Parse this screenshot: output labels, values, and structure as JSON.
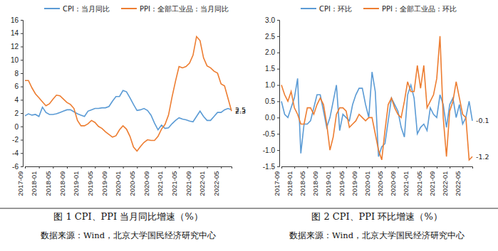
{
  "chart_data": [
    {
      "type": "line",
      "title": "图 1 CPI、PPI 当月同比增速（%）",
      "source": "数据来源：Wind，北京大学国民经济研究中心",
      "categories": [
        "2017-09",
        null,
        null,
        null,
        "2018-01",
        null,
        null,
        null,
        "2018-05",
        null,
        null,
        null,
        "2018-09",
        null,
        null,
        null,
        "2019-01",
        null,
        null,
        null,
        "2019-05",
        null,
        null,
        null,
        "2019-09",
        null,
        null,
        null,
        "2020-01",
        null,
        null,
        null,
        "2020-05",
        null,
        null,
        null,
        "2020-09",
        null,
        null,
        null,
        "2021-01",
        null,
        null,
        null,
        "2021-05",
        null,
        null,
        null,
        "2021-09",
        null,
        null,
        null,
        "2022-01",
        null,
        null,
        null,
        "2022-05",
        null,
        null,
        null
      ],
      "ylim": [
        -6,
        16
      ],
      "yticks": [
        -6,
        -4,
        -2,
        0,
        2,
        4,
        6,
        8,
        10,
        12,
        14,
        16
      ],
      "grid": false,
      "legend": "top",
      "annotations": [
        "2.5",
        "2.3"
      ],
      "series": [
        {
          "name": "CPI：当月同比",
          "color": "#5b9bd5",
          "values": [
            1.6,
            1.9,
            1.7,
            1.8,
            1.5,
            2.9,
            2.1,
            1.8,
            1.8,
            1.9,
            2.1,
            2.3,
            2.5,
            2.5,
            2.2,
            1.9,
            1.7,
            1.5,
            2.3,
            2.5,
            2.7,
            2.7,
            2.8,
            2.8,
            3.0,
            3.8,
            4.5,
            4.5,
            5.4,
            5.2,
            4.3,
            3.3,
            2.4,
            2.5,
            2.7,
            2.4,
            1.7,
            0.5,
            -0.5,
            0.2,
            -0.3,
            -0.2,
            0.4,
            0.9,
            1.3,
            1.1,
            1.0,
            0.8,
            0.7,
            1.5,
            2.3,
            1.5,
            0.9,
            0.9,
            1.5,
            2.1,
            2.1,
            2.5,
            2.7,
            2.5
          ]
        },
        {
          "name": "PPI：全部工业品：当月同比",
          "color": "#ed7d31",
          "values": [
            6.9,
            6.9,
            5.8,
            4.9,
            4.3,
            3.7,
            3.1,
            3.4,
            4.1,
            4.7,
            4.6,
            4.1,
            3.6,
            3.3,
            2.7,
            0.9,
            0.1,
            0.1,
            0.4,
            0.9,
            0.6,
            0.0,
            -0.3,
            -0.8,
            -1.2,
            -1.6,
            -1.4,
            -0.5,
            0.1,
            -0.4,
            -1.5,
            -3.1,
            -3.7,
            -3.0,
            -2.4,
            -2.0,
            -2.1,
            -2.1,
            -1.5,
            -0.4,
            0.3,
            1.7,
            4.4,
            6.8,
            9.0,
            8.8,
            9.0,
            9.5,
            10.7,
            13.5,
            12.9,
            10.3,
            9.1,
            8.8,
            8.3,
            8.0,
            6.4,
            6.1,
            4.2,
            2.3
          ]
        }
      ]
    },
    {
      "type": "line",
      "title": "图 2 CPI、PPI 环比增速（%）",
      "source": "数据来源：Wind，北京大学国民经济研究中心",
      "categories": [
        "2017-09",
        null,
        null,
        null,
        "2018-01",
        null,
        null,
        null,
        "2018-05",
        null,
        null,
        null,
        "2018-09",
        null,
        null,
        null,
        "2019-01",
        null,
        null,
        null,
        "2019-05",
        null,
        null,
        null,
        "2019-09",
        null,
        null,
        null,
        "2020-01",
        null,
        null,
        null,
        "2020-05",
        null,
        null,
        null,
        "2020-09",
        null,
        null,
        null,
        "2021-01",
        null,
        null,
        null,
        "2021-05",
        null,
        null,
        null,
        "2021-09",
        null,
        null,
        null,
        "2022-01",
        null,
        null,
        null,
        "2022-05",
        null,
        null,
        null
      ],
      "ylim": [
        -1.5,
        3.0
      ],
      "yticks": [
        {
          "value": -1.5,
          "label": "-1.5"
        },
        {
          "value": -1.0,
          "label": "-1.0"
        },
        {
          "value": -0.5,
          "label": "-0.5"
        },
        {
          "value": 0,
          "label": "0.0"
        },
        {
          "value": 0.5,
          "label": "0.5"
        },
        {
          "value": 1.0,
          "label": "1.0"
        },
        {
          "value": 1.5,
          "label": "1.5"
        },
        {
          "value": 2.0,
          "label": "2.0"
        },
        {
          "value": 2.5,
          "label": "2.5"
        },
        {
          "value": 3.0,
          "label": "3.0"
        }
      ],
      "grid": false,
      "legend": "top",
      "annotations": [
        "-0.1",
        "-1.2"
      ],
      "series": [
        {
          "name": "CPI：环比",
          "color": "#5b9bd5",
          "values": [
            0.5,
            0.1,
            0.0,
            0.3,
            0.6,
            1.2,
            -1.1,
            -0.2,
            -0.2,
            -0.1,
            0.3,
            0.7,
            0.7,
            0.2,
            -0.3,
            0.0,
            0.5,
            1.0,
            -0.4,
            0.1,
            0.0,
            -0.1,
            0.4,
            0.7,
            0.9,
            0.9,
            0.4,
            0.0,
            1.4,
            0.8,
            -1.2,
            -0.9,
            -0.8,
            -0.1,
            0.6,
            0.4,
            0.2,
            -0.3,
            -0.6,
            0.7,
            1.0,
            0.6,
            -0.5,
            -0.3,
            -0.2,
            -0.4,
            0.3,
            0.1,
            0.0,
            0.7,
            0.4,
            -0.3,
            0.4,
            0.6,
            0.0,
            0.4,
            -0.2,
            0.0,
            0.5,
            -0.1
          ]
        },
        {
          "name": "PPI：全部工业品：环比",
          "color": "#ed7d31",
          "values": [
            1.0,
            0.7,
            0.5,
            0.8,
            0.3,
            0.1,
            -0.2,
            -0.2,
            0.3,
            0.3,
            0.1,
            0.4,
            0.6,
            0.4,
            -0.2,
            -1.0,
            -0.6,
            0.1,
            0.3,
            0.3,
            0.2,
            -0.3,
            -0.2,
            -0.1,
            0.1,
            0.0,
            -0.1,
            0.0,
            0.0,
            -0.5,
            -1.0,
            -1.3,
            -0.4,
            0.4,
            0.6,
            0.3,
            0.1,
            0.0,
            0.5,
            1.1,
            0.8,
            0.8,
            1.6,
            0.9,
            1.6,
            0.3,
            0.5,
            0.7,
            1.2,
            2.5,
            0.0,
            -1.2,
            0.2,
            0.5,
            1.1,
            0.6,
            0.1,
            0.0,
            -1.3,
            -1.2
          ]
        }
      ]
    }
  ]
}
